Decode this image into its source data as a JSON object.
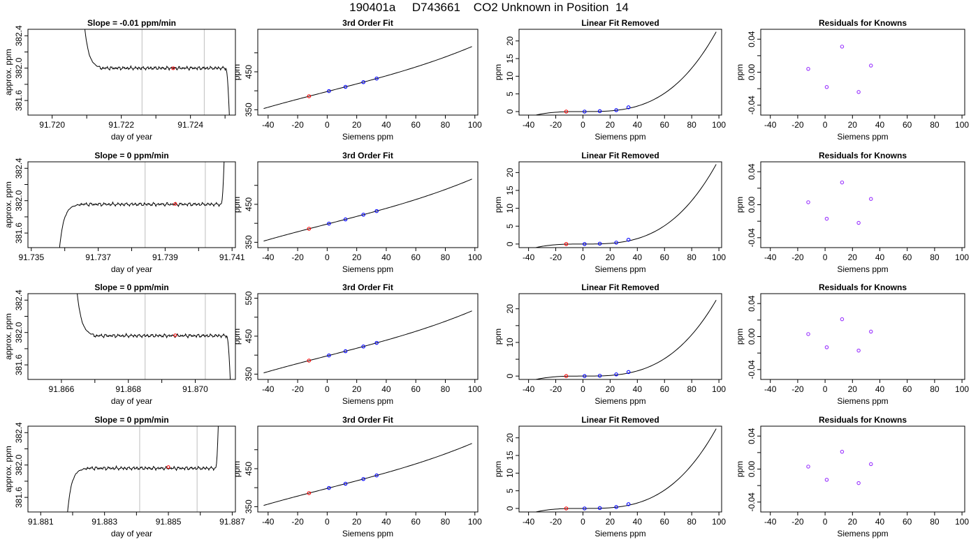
{
  "page": {
    "title": "190401a     D743661    CO2 Unknown in Position  14"
  },
  "chart_data": [
    {
      "type": "line",
      "title": "Slope =  -0.01  ppm/min",
      "xlabel": "day of year",
      "ylabel": "approx. ppm",
      "xlim": [
        91.7193,
        91.7253
      ],
      "ylim": [
        381.42,
        382.48
      ],
      "xticks": [
        91.72,
        91.721,
        91.722,
        91.723,
        91.724,
        91.725
      ],
      "xticklabels": [
        "91.720",
        "",
        "91.722",
        "",
        "91.724",
        ""
      ],
      "yticks": [
        381.6,
        381.8,
        382.0,
        382.2,
        382.4
      ],
      "yticklabels": [
        "381.6",
        "",
        "382.0",
        "",
        "382.4"
      ],
      "vlines": [
        91.7226,
        91.7244
      ],
      "marker": {
        "x": 91.7235,
        "y": 381.998,
        "color": "#ff0000"
      },
      "trace": {
        "x0": 91.72087,
        "x1": 91.72517,
        "start": "high",
        "end": "low",
        "level": 382.0
      }
    },
    {
      "type": "line",
      "title": "3rd Order Fit",
      "xlabel": "Siemens ppm",
      "ylabel": "ppm",
      "xlim": [
        -47,
        102
      ],
      "ylim": [
        336,
        562
      ],
      "xticks": [
        -40,
        -20,
        0,
        20,
        40,
        60,
        80,
        100
      ],
      "xticklabels": [
        "-40",
        "-20",
        "0",
        "20",
        "40",
        "60",
        "80",
        "100"
      ],
      "yticks": [
        350,
        400,
        450,
        500
      ],
      "yticklabels": [
        "350",
        "",
        "450",
        ""
      ],
      "curve": {
        "from": -43,
        "to": 98,
        "linear": [
          397.99,
          1.0,
          0.0,
          0.0
        ],
        "cubic": [
          2.18e-05,
          0.0
        ]
      },
      "points": [
        {
          "x": -12.3,
          "y": 385.7,
          "color": "#ff0000"
        },
        {
          "x": 1.2,
          "y": 399.2,
          "color": "#0000ff"
        },
        {
          "x": 12.4,
          "y": 410.4,
          "color": "#0000ff"
        },
        {
          "x": 24.5,
          "y": 422.8,
          "color": "#0000ff"
        },
        {
          "x": 33.5,
          "y": 432.3,
          "color": "#0000ff"
        }
      ]
    },
    {
      "type": "line",
      "title": "Linear Fit Removed",
      "xlabel": "Siemens ppm",
      "ylabel": "ppm",
      "xlim": [
        -47,
        102
      ],
      "ylim": [
        -1,
        23.3
      ],
      "xticks": [
        -40,
        -20,
        0,
        20,
        40,
        60,
        80,
        100
      ],
      "xticklabels": [
        "-40",
        "-20",
        "0",
        "20",
        "40",
        "60",
        "80",
        "100"
      ],
      "yticks": [
        0,
        5,
        10,
        15,
        20
      ],
      "yticklabels": [
        "0",
        "5",
        "10",
        "15",
        "20"
      ],
      "curve": {
        "from": -43,
        "to": 98,
        "poly": [
          2.4e-05,
          0.0
        ]
      },
      "points": [
        {
          "x": -12.3,
          "y": 0.0,
          "color": "#ff0000"
        },
        {
          "x": 1.2,
          "y": 0.0,
          "color": "#0000ff"
        },
        {
          "x": 12.4,
          "y": 0.1,
          "color": "#0000ff"
        },
        {
          "x": 24.5,
          "y": 0.4,
          "color": "#0000ff"
        },
        {
          "x": 33.5,
          "y": 1.2,
          "color": "#0000ff"
        }
      ]
    },
    {
      "type": "scatter",
      "title": "Residuals for Knowns",
      "xlabel": "Siemens ppm",
      "ylabel": "ppm",
      "xlim": [
        -47,
        102
      ],
      "ylim": [
        -0.052,
        0.052
      ],
      "xticks": [
        -40,
        -20,
        0,
        20,
        40,
        60,
        80,
        100
      ],
      "xticklabels": [
        "-40",
        "-20",
        "0",
        "20",
        "40",
        "60",
        "80",
        "100"
      ],
      "yticks": [
        -0.04,
        -0.02,
        0.0,
        0.02,
        0.04
      ],
      "yticklabels": [
        "-0.04",
        "",
        "0.00",
        "",
        "0.04"
      ],
      "points": [
        {
          "x": -12.3,
          "y": 0.004
        },
        {
          "x": 1.2,
          "y": -0.018
        },
        {
          "x": 12.4,
          "y": 0.031
        },
        {
          "x": 24.5,
          "y": -0.024
        },
        {
          "x": 33.5,
          "y": 0.008
        }
      ]
    },
    {
      "type": "line",
      "title": "Slope =  0  ppm/min",
      "xlabel": "day of year",
      "ylabel": "approx. ppm",
      "xlim": [
        91.7349,
        91.7411
      ],
      "ylim": [
        381.42,
        382.48
      ],
      "xticks": [
        91.735,
        91.736,
        91.737,
        91.738,
        91.739,
        91.74,
        91.741
      ],
      "xticklabels": [
        "91.735",
        "",
        "91.737",
        "",
        "91.739",
        "",
        "91.741"
      ],
      "yticks": [
        381.6,
        381.8,
        382.0,
        382.2,
        382.4
      ],
      "yticklabels": [
        "381.6",
        "",
        "382.0",
        "",
        "382.4"
      ],
      "vlines": [
        91.7384,
        91.7402
      ],
      "marker": {
        "x": 91.7393,
        "y": 381.96,
        "color": "#ff0000"
      },
      "trace": {
        "x0": 91.7358,
        "x1": 91.7408,
        "start": "low",
        "end": "high",
        "level": 381.955
      }
    },
    {
      "type": "line",
      "title": "3rd Order Fit",
      "xlabel": "Siemens ppm",
      "ylabel": "ppm",
      "xlim": [
        -47,
        102
      ],
      "ylim": [
        336,
        562
      ],
      "xticks": [
        -40,
        -20,
        0,
        20,
        40,
        60,
        80,
        100
      ],
      "xticklabels": [
        "-40",
        "-20",
        "0",
        "20",
        "40",
        "60",
        "80",
        "100"
      ],
      "yticks": [
        350,
        400,
        450,
        500
      ],
      "yticklabels": [
        "350",
        "",
        "450",
        ""
      ],
      "curve": {
        "from": -43,
        "to": 98,
        "linear": [
          397.99,
          1.0,
          0.0,
          0.0
        ],
        "cubic": [
          2.18e-05,
          0.0
        ]
      },
      "points": [
        {
          "x": -12.3,
          "y": 385.7,
          "color": "#ff0000"
        },
        {
          "x": 1.2,
          "y": 399.2,
          "color": "#0000ff"
        },
        {
          "x": 12.4,
          "y": 410.4,
          "color": "#0000ff"
        },
        {
          "x": 24.5,
          "y": 422.8,
          "color": "#0000ff"
        },
        {
          "x": 33.5,
          "y": 432.3,
          "color": "#0000ff"
        }
      ]
    },
    {
      "type": "line",
      "title": "Linear Fit Removed",
      "xlabel": "Siemens ppm",
      "ylabel": "ppm",
      "xlim": [
        -47,
        102
      ],
      "ylim": [
        -1,
        23
      ],
      "xticks": [
        -40,
        -20,
        0,
        20,
        40,
        60,
        80,
        100
      ],
      "xticklabels": [
        "-40",
        "-20",
        "0",
        "20",
        "40",
        "60",
        "80",
        "100"
      ],
      "yticks": [
        0,
        5,
        10,
        15,
        20
      ],
      "yticklabels": [
        "0",
        "5",
        "10",
        "15",
        "20"
      ],
      "curve": {
        "from": -43,
        "to": 98,
        "poly": [
          2.37e-05,
          0.0
        ]
      },
      "points": [
        {
          "x": -12.3,
          "y": 0.0,
          "color": "#ff0000"
        },
        {
          "x": 1.2,
          "y": 0.0,
          "color": "#0000ff"
        },
        {
          "x": 12.4,
          "y": 0.1,
          "color": "#0000ff"
        },
        {
          "x": 24.5,
          "y": 0.4,
          "color": "#0000ff"
        },
        {
          "x": 33.5,
          "y": 1.2,
          "color": "#0000ff"
        }
      ]
    },
    {
      "type": "scatter",
      "title": "Residuals for Knowns",
      "xlabel": "Siemens ppm",
      "ylabel": "ppm",
      "xlim": [
        -47,
        102
      ],
      "ylim": [
        -0.052,
        0.052
      ],
      "xticks": [
        -40,
        -20,
        0,
        20,
        40,
        60,
        80,
        100
      ],
      "xticklabels": [
        "-40",
        "-20",
        "0",
        "20",
        "40",
        "60",
        "80",
        "100"
      ],
      "yticks": [
        -0.04,
        -0.02,
        0.0,
        0.02,
        0.04
      ],
      "yticklabels": [
        "-0.04",
        "",
        "0.00",
        "",
        "0.04"
      ],
      "points": [
        {
          "x": -12.3,
          "y": 0.003
        },
        {
          "x": 1.2,
          "y": -0.017
        },
        {
          "x": 12.4,
          "y": 0.027
        },
        {
          "x": 24.5,
          "y": -0.022
        },
        {
          "x": 33.5,
          "y": 0.007
        }
      ]
    },
    {
      "type": "line",
      "title": "Slope =  0  ppm/min",
      "xlabel": "day of year",
      "ylabel": "approx. ppm",
      "xlim": [
        91.865,
        91.8712
      ],
      "ylim": [
        381.42,
        382.48
      ],
      "xticks": [
        91.866,
        91.867,
        91.868,
        91.869,
        91.87
      ],
      "xticklabels": [
        "91.866",
        "",
        "91.868",
        "",
        "91.870"
      ],
      "yticks": [
        381.6,
        381.8,
        382.0,
        382.2,
        382.4
      ],
      "yticklabels": [
        "381.6",
        "",
        "382.0",
        "",
        "382.4"
      ],
      "vlines": [
        91.8685,
        91.8703
      ],
      "marker": {
        "x": 91.8694,
        "y": 381.965,
        "color": "#ff0000"
      },
      "trace": {
        "x0": 91.8664,
        "x1": 91.8711,
        "start": "high",
        "end": "low",
        "level": 381.96
      }
    },
    {
      "type": "line",
      "title": "3rd Order Fit",
      "xlabel": "Siemens ppm",
      "ylabel": "ppm",
      "xlim": [
        -47,
        102
      ],
      "ylim": [
        336,
        562
      ],
      "xticks": [
        -40,
        -20,
        0,
        20,
        40,
        60,
        80,
        100
      ],
      "xticklabels": [
        "-40",
        "-20",
        "0",
        "20",
        "40",
        "60",
        "80",
        "100"
      ],
      "yticks": [
        350,
        400,
        450,
        500,
        550
      ],
      "yticklabels": [
        "350",
        "",
        "450",
        "",
        "550"
      ],
      "curve": {
        "from": -43,
        "to": 98,
        "linear": [
          397.99,
          1.0,
          0.0,
          0.0
        ],
        "cubic": [
          2.18e-05,
          0.0
        ]
      },
      "points": [
        {
          "x": -12.3,
          "y": 385.7,
          "color": "#ff0000"
        },
        {
          "x": 1.2,
          "y": 399.2,
          "color": "#0000ff"
        },
        {
          "x": 12.4,
          "y": 410.4,
          "color": "#0000ff"
        },
        {
          "x": 24.5,
          "y": 422.8,
          "color": "#0000ff"
        },
        {
          "x": 33.5,
          "y": 432.3,
          "color": "#0000ff"
        }
      ]
    },
    {
      "type": "line",
      "title": "Linear Fit Removed",
      "xlabel": "Siemens ppm",
      "ylabel": "ppm",
      "xlim": [
        -47,
        102
      ],
      "ylim": [
        -1,
        24.5
      ],
      "xticks": [
        -40,
        -20,
        0,
        20,
        40,
        60,
        80,
        100
      ],
      "xticklabels": [
        "-40",
        "-20",
        "0",
        "20",
        "40",
        "60",
        "80",
        "100"
      ],
      "yticks": [
        0,
        5,
        10,
        15,
        20
      ],
      "yticklabels": [
        "0",
        "",
        "10",
        "",
        "20"
      ],
      "curve": {
        "from": -43,
        "to": 98,
        "poly": [
          2.4e-05,
          0.0
        ]
      },
      "points": [
        {
          "x": -12.3,
          "y": 0.0,
          "color": "#ff0000"
        },
        {
          "x": 1.2,
          "y": 0.0,
          "color": "#0000ff"
        },
        {
          "x": 12.4,
          "y": 0.1,
          "color": "#0000ff"
        },
        {
          "x": 24.5,
          "y": 0.5,
          "color": "#0000ff"
        },
        {
          "x": 33.5,
          "y": 1.2,
          "color": "#0000ff"
        }
      ]
    },
    {
      "type": "scatter",
      "title": "Residuals for Knowns",
      "xlabel": "Siemens ppm",
      "ylabel": "ppm",
      "xlim": [
        -47,
        102
      ],
      "ylim": [
        -0.052,
        0.052
      ],
      "xticks": [
        -40,
        -20,
        0,
        20,
        40,
        60,
        80,
        100
      ],
      "xticklabels": [
        "-40",
        "-20",
        "0",
        "20",
        "40",
        "60",
        "80",
        "100"
      ],
      "yticks": [
        -0.04,
        -0.02,
        0.0,
        0.02,
        0.04
      ],
      "yticklabels": [
        "-0.04",
        "",
        "0.00",
        "",
        "0.04"
      ],
      "points": [
        {
          "x": -12.3,
          "y": 0.003
        },
        {
          "x": 1.2,
          "y": -0.013
        },
        {
          "x": 12.4,
          "y": 0.021
        },
        {
          "x": 24.5,
          "y": -0.017
        },
        {
          "x": 33.5,
          "y": 0.006
        }
      ]
    },
    {
      "type": "line",
      "title": "Slope =  0  ppm/min",
      "xlabel": "day of year",
      "ylabel": "approx. ppm",
      "xlim": [
        91.8806,
        91.8871
      ],
      "ylim": [
        381.42,
        382.48
      ],
      "xticks": [
        91.881,
        91.882,
        91.883,
        91.884,
        91.885,
        91.886,
        91.887
      ],
      "xticklabels": [
        "91.881",
        "",
        "91.883",
        "",
        "91.885",
        "",
        "91.887"
      ],
      "yticks": [
        381.6,
        381.8,
        382.0,
        382.2,
        382.4
      ],
      "yticklabels": [
        "381.6",
        "",
        "382.0",
        "",
        "382.4"
      ],
      "vlines": [
        91.8841,
        91.8859
      ],
      "marker": {
        "x": 91.885,
        "y": 381.975,
        "color": "#ff0000"
      },
      "trace": {
        "x0": 91.8818,
        "x1": 91.8866,
        "start": "low",
        "end": "high",
        "level": 381.96
      }
    },
    {
      "type": "line",
      "title": "3rd Order Fit",
      "xlabel": "Siemens ppm",
      "ylabel": "ppm",
      "xlim": [
        -47,
        102
      ],
      "ylim": [
        336,
        562
      ],
      "xticks": [
        -40,
        -20,
        0,
        20,
        40,
        60,
        80,
        100
      ],
      "xticklabels": [
        "-40",
        "-20",
        "0",
        "20",
        "40",
        "60",
        "80",
        "100"
      ],
      "yticks": [
        350,
        400,
        450,
        500
      ],
      "yticklabels": [
        "350",
        "",
        "450",
        ""
      ],
      "curve": {
        "from": -43,
        "to": 98,
        "linear": [
          397.99,
          1.0,
          0.0,
          0.0
        ],
        "cubic": [
          2.18e-05,
          0.0
        ]
      },
      "points": [
        {
          "x": -12.3,
          "y": 385.7,
          "color": "#ff0000"
        },
        {
          "x": 1.2,
          "y": 399.2,
          "color": "#0000ff"
        },
        {
          "x": 12.4,
          "y": 410.4,
          "color": "#0000ff"
        },
        {
          "x": 24.5,
          "y": 422.8,
          "color": "#0000ff"
        },
        {
          "x": 33.5,
          "y": 432.3,
          "color": "#0000ff"
        }
      ]
    },
    {
      "type": "line",
      "title": "Linear Fit Removed",
      "xlabel": "Siemens ppm",
      "ylabel": "ppm",
      "xlim": [
        -47,
        102
      ],
      "ylim": [
        -1,
        23.3
      ],
      "xticks": [
        -40,
        -20,
        0,
        20,
        40,
        60,
        80,
        100
      ],
      "xticklabels": [
        "-40",
        "-20",
        "0",
        "20",
        "40",
        "60",
        "80",
        "100"
      ],
      "yticks": [
        0,
        5,
        10,
        15,
        20
      ],
      "yticklabels": [
        "0",
        "5",
        "10",
        "15",
        "20"
      ],
      "curve": {
        "from": -43,
        "to": 98,
        "poly": [
          2.4e-05,
          0.0
        ]
      },
      "points": [
        {
          "x": -12.3,
          "y": 0.0,
          "color": "#ff0000"
        },
        {
          "x": 1.2,
          "y": 0.0,
          "color": "#0000ff"
        },
        {
          "x": 12.4,
          "y": 0.1,
          "color": "#0000ff"
        },
        {
          "x": 24.5,
          "y": 0.4,
          "color": "#0000ff"
        },
        {
          "x": 33.5,
          "y": 1.2,
          "color": "#0000ff"
        }
      ]
    },
    {
      "type": "scatter",
      "title": "Residuals for Knowns",
      "xlabel": "Siemens ppm",
      "ylabel": "ppm",
      "xlim": [
        -47,
        102
      ],
      "ylim": [
        -0.052,
        0.052
      ],
      "xticks": [
        -40,
        -20,
        0,
        20,
        40,
        60,
        80,
        100
      ],
      "xticklabels": [
        "-40",
        "-20",
        "0",
        "20",
        "40",
        "60",
        "80",
        "100"
      ],
      "yticks": [
        -0.04,
        -0.02,
        0.0,
        0.02,
        0.04
      ],
      "yticklabels": [
        "-0.04",
        "",
        "0.00",
        "",
        "0.04"
      ],
      "points": [
        {
          "x": -12.3,
          "y": 0.003
        },
        {
          "x": 1.2,
          "y": -0.013
        },
        {
          "x": 12.4,
          "y": 0.021
        },
        {
          "x": 24.5,
          "y": -0.017
        },
        {
          "x": 33.5,
          "y": 0.006
        }
      ]
    }
  ],
  "style": {
    "line_color": "#000000",
    "vline_color": "#c8c8c8",
    "residual_color": "#9933ff"
  }
}
